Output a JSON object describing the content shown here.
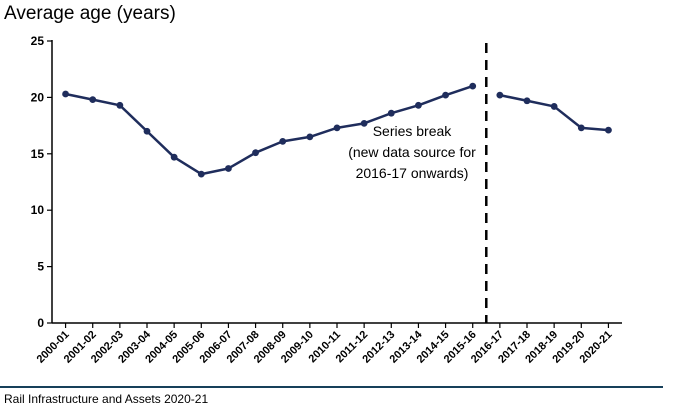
{
  "colors": {
    "series": "#1f2d5c",
    "axis": "#000000",
    "text": "#000000",
    "footer_rule": "#17405a"
  },
  "footer": {
    "source": "Rail Infrastructure and Assets 2020-21"
  },
  "chart_data": {
    "type": "line",
    "title": "Average age (years)",
    "xlabel": "",
    "ylabel": "",
    "ylim": [
      0,
      25
    ],
    "yticks": [
      0,
      5,
      10,
      15,
      20,
      25
    ],
    "grid": false,
    "categories": [
      "2000-01",
      "2001-02",
      "2002-03",
      "2003-04",
      "2004-05",
      "2005-06",
      "2006-07",
      "2007-08",
      "2008-09",
      "2009-10",
      "2010-11",
      "2011-12",
      "2012-13",
      "2013-14",
      "2014-15",
      "2015-16",
      "2016-17",
      "2017-18",
      "2018-19",
      "2019-20",
      "2020-21"
    ],
    "series": [
      {
        "values": [
          20.3,
          19.8,
          19.3,
          17.0,
          14.7,
          13.2,
          13.7,
          15.1,
          16.1,
          16.5,
          17.3,
          17.7,
          18.6,
          19.3,
          20.2,
          21.0,
          null,
          null,
          null,
          null,
          null
        ]
      },
      {
        "values": [
          null,
          null,
          null,
          null,
          null,
          null,
          null,
          null,
          null,
          null,
          null,
          null,
          null,
          null,
          null,
          null,
          20.2,
          19.7,
          19.2,
          17.3,
          17.1
        ]
      }
    ],
    "series_break": {
      "after_category": "2015-16",
      "label_lines": [
        "Series break",
        "(new data source for",
        "2016-17 onwards)"
      ]
    }
  }
}
